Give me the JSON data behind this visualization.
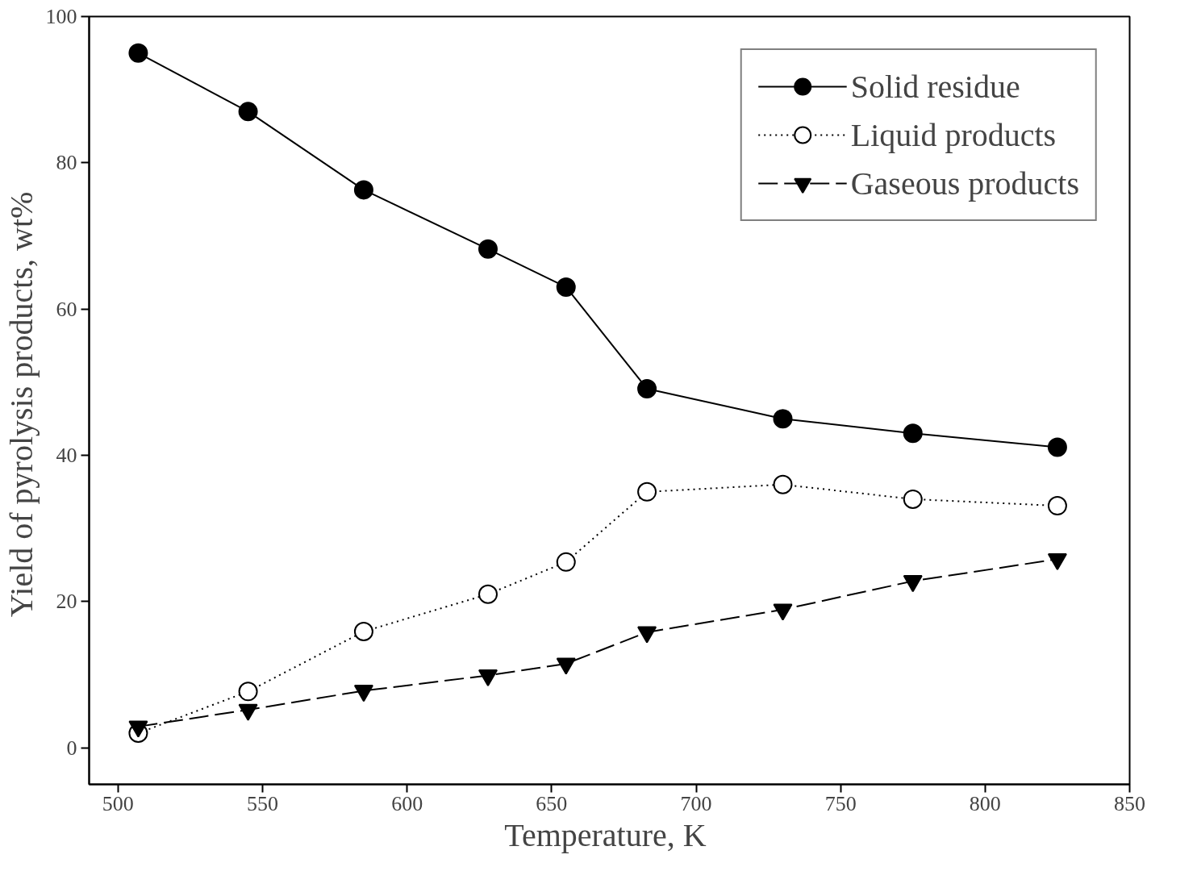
{
  "chart_data": {
    "type": "line",
    "xlabel": "Temperature,  K",
    "ylabel": "Yield of pyrolysis products,  wt%",
    "x": [
      507,
      545,
      585,
      628,
      655,
      683,
      730,
      775,
      825
    ],
    "series": [
      {
        "name": "Solid residue",
        "color": "#000000",
        "marker": "circle",
        "line_style": "solid",
        "values": [
          95,
          87,
          76.3,
          68.2,
          63,
          49.1,
          45,
          43,
          41.1
        ]
      },
      {
        "name": "Liquid products",
        "color": "#000000",
        "marker": "circle_open",
        "line_style": "dotted",
        "values": [
          2,
          7.7,
          15.9,
          21,
          25.4,
          35,
          36,
          34,
          33.1
        ]
      },
      {
        "name": "Gaseous products",
        "color": "#000000",
        "marker": "triangle",
        "line_style": "dashed",
        "values": [
          2.9,
          5.2,
          7.8,
          9.9,
          11.5,
          15.8,
          18.9,
          22.8,
          25.8
        ]
      }
    ],
    "xlim": [
      490,
      850
    ],
    "ylim": [
      -5,
      100
    ],
    "xticks": [
      500,
      550,
      600,
      650,
      700,
      750,
      800,
      850
    ],
    "yticks": [
      0,
      20,
      40,
      60,
      80,
      100
    ],
    "grid": false,
    "legend": "top right"
  }
}
